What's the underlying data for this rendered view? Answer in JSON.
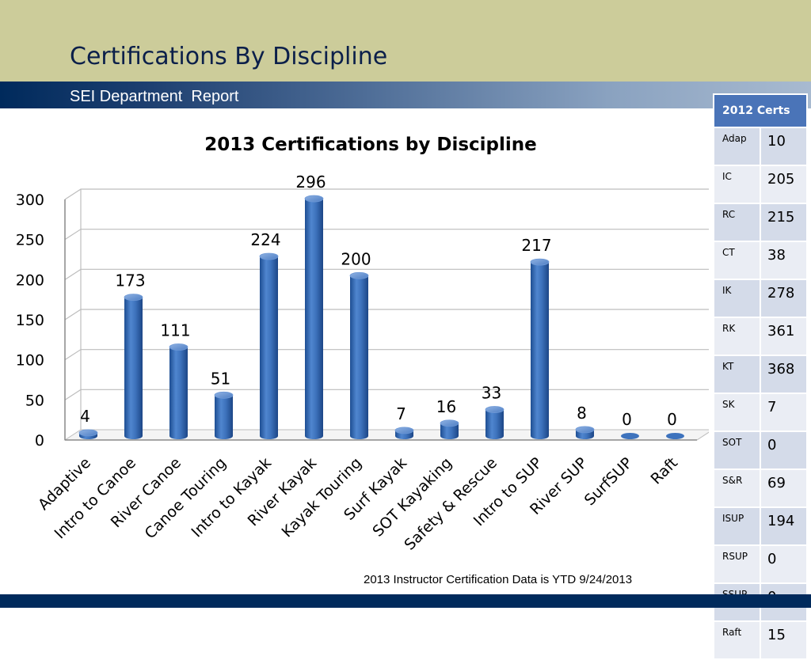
{
  "slide": {
    "title": "Certifications By Discipline",
    "subtitle": "SEI Department  Report",
    "footnote": "2013 Instructor Certification Data is YTD 9/24/2013"
  },
  "colors": {
    "band_top": "#cccc9a",
    "band_dark": "#002a5c",
    "bar": "#3e73bd",
    "table_header": "#4a74b8"
  },
  "chart_data": {
    "type": "bar",
    "title": "2013 Certifications by Discipline",
    "categories": [
      "Adaptive",
      "Intro to Canoe",
      "River Canoe",
      "Canoe Touring",
      "Intro to Kayak",
      "River Kayak",
      "Kayak Touring",
      "Surf Kayak",
      "SOT Kayaking",
      "Safety & Rescue",
      "Intro to SUP",
      "River SUP",
      "SurfSUP",
      "Raft"
    ],
    "values": [
      4,
      173,
      111,
      51,
      224,
      296,
      200,
      7,
      16,
      33,
      217,
      8,
      0,
      0
    ],
    "y_ticks": [
      "0",
      "50",
      "100",
      "150",
      "200",
      "250",
      "300"
    ],
    "ylim": [
      0,
      300
    ],
    "grid": true,
    "legend": "none",
    "style": "3d-cylinder"
  },
  "cert_table": {
    "header": "2012 Certs",
    "rows": [
      {
        "code": "Adap",
        "value": "10"
      },
      {
        "code": "IC",
        "value": "205"
      },
      {
        "code": "RC",
        "value": "215"
      },
      {
        "code": "CT",
        "value": "38"
      },
      {
        "code": "IK",
        "value": "278"
      },
      {
        "code": "RK",
        "value": "361"
      },
      {
        "code": "KT",
        "value": "368"
      },
      {
        "code": "SK",
        "value": "7"
      },
      {
        "code": "SOT",
        "value": "0"
      },
      {
        "code": "S&R",
        "value": "69"
      },
      {
        "code": "ISUP",
        "value": "194"
      },
      {
        "code": "RSUP",
        "value": "0"
      },
      {
        "code": "SSUP",
        "value": "0"
      },
      {
        "code": "Raft",
        "value": "15"
      }
    ]
  }
}
